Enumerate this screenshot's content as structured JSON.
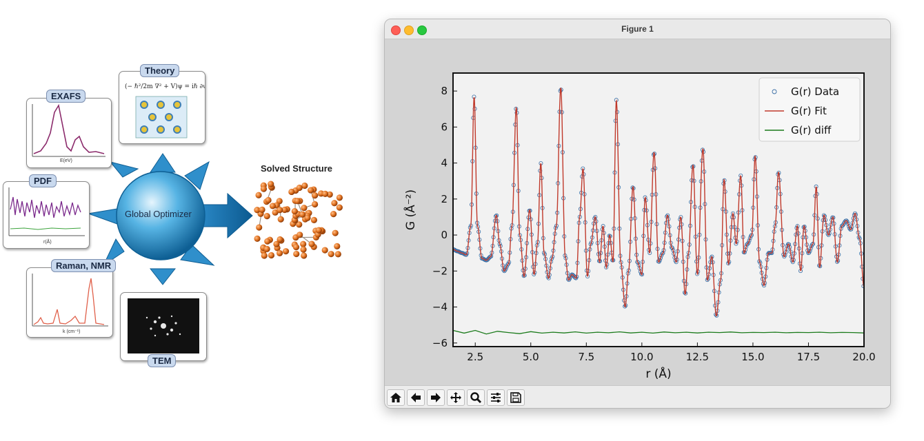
{
  "infographic": {
    "center_label": "Global Optimizer",
    "output_label": "Solved Structure",
    "inputs": {
      "exafs": {
        "tag": "EXAFS",
        "xlabel": "E(eV)"
      },
      "pdf": {
        "tag": "PDF",
        "xlabel": "r(Å)"
      },
      "raman": {
        "tag": "Raman, NMR",
        "xlabel": "k (cm⁻¹)"
      },
      "theory": {
        "tag": "Theory"
      },
      "tem": {
        "tag": "TEM"
      }
    }
  },
  "window": {
    "title": "Figure 1",
    "toolbar": [
      "home-icon",
      "back-icon",
      "forward-icon",
      "pan-icon",
      "zoom-icon",
      "configure-icon",
      "save-icon"
    ]
  },
  "chart_data": {
    "type": "line",
    "title": "",
    "xlabel": "r (Å)",
    "ylabel": "G (Å⁻²)",
    "xlim": [
      1.5,
      20.0
    ],
    "ylim": [
      -6.2,
      9.0
    ],
    "x_ticks": [
      "2.5",
      "5.0",
      "7.5",
      "10.0",
      "12.5",
      "15.0",
      "17.5",
      "20.0"
    ],
    "y_ticks": [
      "−6",
      "−4",
      "−2",
      "0",
      "2",
      "4",
      "6",
      "8"
    ],
    "legend": {
      "placement": "top-right",
      "entries": [
        "G(r) Data",
        "G(r) Fit",
        "G(r) diff"
      ]
    },
    "colors": {
      "data": "#3a6ea5",
      "fit": "#c0392b",
      "diff": "#1a7a1a",
      "axes_bg": "#f2f2f2"
    },
    "series": [
      {
        "name": "G(r) Fit",
        "x": [
          1.5,
          1.7,
          1.9,
          2.1,
          2.3,
          2.45,
          2.6,
          2.8,
          3.0,
          3.2,
          3.45,
          3.6,
          3.8,
          4.0,
          4.15,
          4.35,
          4.5,
          4.7,
          4.95,
          5.15,
          5.3,
          5.45,
          5.6,
          5.8,
          5.95,
          6.15,
          6.35,
          6.55,
          6.7,
          6.85,
          7.05,
          7.2,
          7.35,
          7.55,
          7.7,
          7.9,
          8.1,
          8.25,
          8.4,
          8.55,
          8.7,
          8.85,
          9.05,
          9.25,
          9.4,
          9.6,
          9.8,
          10.0,
          10.15,
          10.35,
          10.55,
          10.75,
          10.95,
          11.15,
          11.35,
          11.55,
          11.75,
          11.95,
          12.1,
          12.3,
          12.5,
          12.75,
          12.95,
          13.15,
          13.35,
          13.55,
          13.7,
          13.9,
          14.1,
          14.25,
          14.45,
          14.6,
          14.75,
          14.95,
          15.1,
          15.3,
          15.5,
          15.7,
          15.85,
          16.0,
          16.15,
          16.4,
          16.6,
          16.8,
          17.0,
          17.15,
          17.3,
          17.5,
          17.7,
          17.85,
          18.0,
          18.2,
          18.4,
          18.6,
          18.8,
          19.0,
          19.2,
          19.4,
          19.6,
          19.8,
          20.0
        ],
        "values": [
          -0.8,
          -0.9,
          -1.0,
          -1.1,
          0.5,
          7.7,
          0.5,
          -1.3,
          -1.4,
          -1.2,
          1.1,
          -0.5,
          -2.0,
          -1.6,
          0.5,
          7.1,
          0.0,
          -2.3,
          1.4,
          -2.2,
          -0.5,
          4.0,
          -1.0,
          -2.4,
          -1.3,
          0.5,
          8.2,
          -1.2,
          -2.5,
          -2.2,
          -2.4,
          1.0,
          3.7,
          -2.3,
          -0.5,
          1.0,
          -1.5,
          0.5,
          -1.8,
          0.0,
          -1.5,
          7.5,
          -1.5,
          -4.0,
          -2.0,
          2.7,
          -1.5,
          -2.2,
          2.1,
          -1.0,
          4.6,
          -1.5,
          -1.0,
          1.1,
          -0.7,
          -1.5,
          1.0,
          -3.3,
          -1.0,
          3.9,
          -2.2,
          4.8,
          -2.5,
          -1.2,
          -4.5,
          -2.5,
          3.1,
          -1.6,
          1.2,
          -0.5,
          3.3,
          -1.0,
          -0.5,
          0.0,
          4.4,
          -1.5,
          -2.8,
          -1.0,
          -1.0,
          0.5,
          3.5,
          -1.2,
          -0.5,
          -1.5,
          0.5,
          -2.0,
          0.5,
          -1.0,
          -0.5,
          2.7,
          -1.8,
          1.1,
          0.0,
          1.0,
          -1.5,
          0.5,
          0.8,
          0.3,
          1.2,
          -0.2,
          -2.9
        ]
      },
      {
        "name": "G(r) diff",
        "x": [
          1.5,
          2.0,
          2.5,
          3.0,
          3.5,
          4.0,
          4.5,
          5.0,
          5.5,
          6.0,
          6.5,
          7.0,
          7.5,
          8.0,
          8.5,
          9.0,
          9.5,
          10.0,
          10.5,
          11.0,
          11.5,
          12.0,
          12.5,
          13.0,
          13.5,
          14.0,
          14.5,
          15.0,
          15.5,
          16.0,
          16.5,
          17.0,
          17.5,
          18.0,
          18.5,
          19.0,
          19.5,
          20.0
        ],
        "values": [
          -5.3,
          -5.45,
          -5.3,
          -5.5,
          -5.35,
          -5.42,
          -5.48,
          -5.37,
          -5.45,
          -5.4,
          -5.44,
          -5.38,
          -5.45,
          -5.4,
          -5.43,
          -5.38,
          -5.44,
          -5.4,
          -5.45,
          -5.39,
          -5.43,
          -5.4,
          -5.44,
          -5.4,
          -5.42,
          -5.39,
          -5.43,
          -5.41,
          -5.42,
          -5.4,
          -5.43,
          -5.41,
          -5.42,
          -5.4,
          -5.43,
          -5.41,
          -5.42,
          -5.44
        ]
      }
    ]
  }
}
